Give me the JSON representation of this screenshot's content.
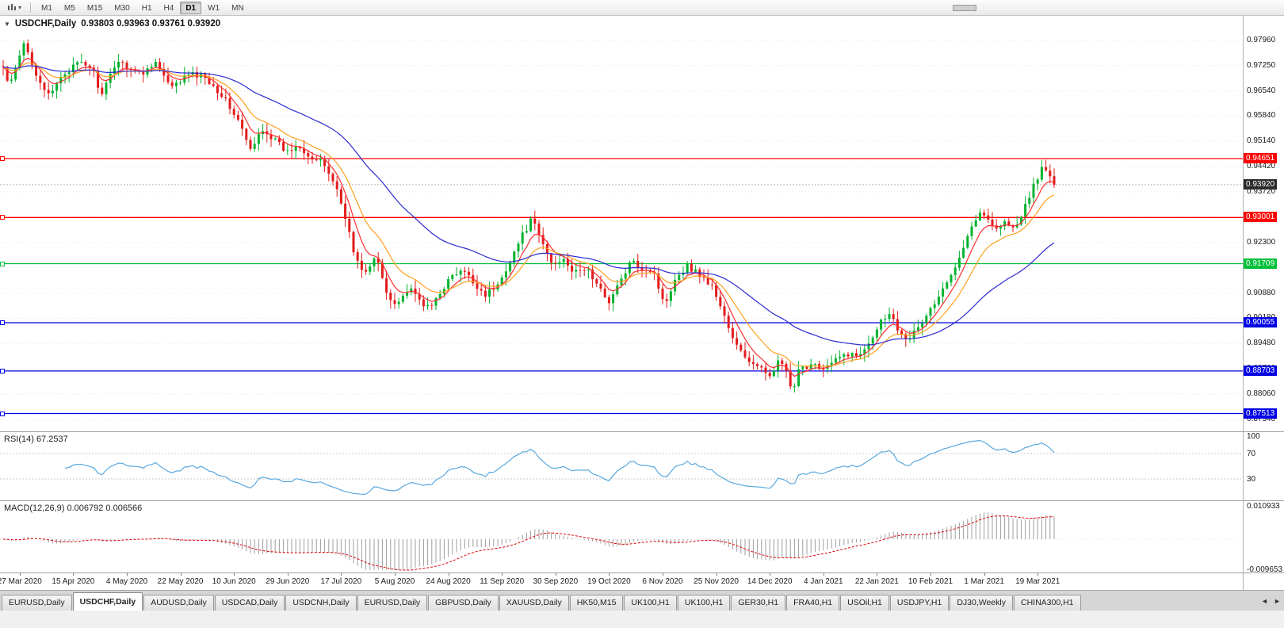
{
  "toolbar": {
    "timeframes": [
      "M1",
      "M5",
      "M15",
      "M30",
      "H1",
      "H4",
      "D1",
      "W1",
      "MN"
    ],
    "active_timeframe": "D1"
  },
  "icons": {
    "chart_type_dropdown": "▾",
    "chart_menu": "▼",
    "tab_scroll_left": "◄",
    "tab_scroll_right": "►"
  },
  "chart": {
    "type": "candlestick",
    "symbol_title": "USDCHF,Daily",
    "ohlc_text": "0.93803 0.93963 0.93761 0.93920",
    "open": "0.93803",
    "high": "0.93963",
    "low": "0.93761",
    "close": "0.93920",
    "current_price": "0.93920",
    "levels": [
      {
        "price": 0.94651,
        "label": "0.94651",
        "color": "red"
      },
      {
        "price": 0.93001,
        "label": "0.93001",
        "color": "red"
      },
      {
        "price": 0.91709,
        "label": "0.91709",
        "color": "green"
      },
      {
        "price": 0.90055,
        "label": "0.90055",
        "color": "blue"
      },
      {
        "price": 0.88703,
        "label": "0.88703",
        "color": "blue"
      },
      {
        "price": 0.87513,
        "label": "0.87513",
        "color": "blue"
      }
    ],
    "y_axis_labels": [
      "0.97960",
      "0.97250",
      "0.96540",
      "0.95840",
      "0.95140",
      "0.94420",
      "0.93720",
      "0.93020",
      "0.92300",
      "0.91600",
      "0.90880",
      "0.90180",
      "0.89480",
      "0.88760",
      "0.88060",
      "0.87340"
    ],
    "x_axis_dates": [
      "27 Mar 2020",
      "15 Apr 2020",
      "4 May 2020",
      "22 May 2020",
      "10 Jun 2020",
      "29 Jun 2020",
      "17 Jul 2020",
      "5 Aug 2020",
      "24 Aug 2020",
      "11 Sep 2020",
      "30 Sep 2020",
      "19 Oct 2020",
      "6 Nov 2020",
      "25 Nov 2020",
      "14 Dec 2020",
      "4 Jan 2021",
      "22 Jan 2021",
      "10 Feb 2021",
      "1 Mar 2021",
      "19 Mar 2021"
    ],
    "price_path": [
      [
        0.0,
        0.972
      ],
      [
        0.006,
        0.9663
      ],
      [
        0.02,
        0.9788
      ],
      [
        0.032,
        0.97
      ],
      [
        0.044,
        0.9635
      ],
      [
        0.056,
        0.97
      ],
      [
        0.072,
        0.9732
      ],
      [
        0.084,
        0.9722
      ],
      [
        0.094,
        0.964
      ],
      [
        0.108,
        0.9742
      ],
      [
        0.12,
        0.972
      ],
      [
        0.132,
        0.97
      ],
      [
        0.144,
        0.974
      ],
      [
        0.16,
        0.966
      ],
      [
        0.176,
        0.9702
      ],
      [
        0.192,
        0.9695
      ],
      [
        0.209,
        0.964
      ],
      [
        0.224,
        0.957
      ],
      [
        0.236,
        0.9482
      ],
      [
        0.246,
        0.9552
      ],
      [
        0.257,
        0.952
      ],
      [
        0.27,
        0.9482
      ],
      [
        0.281,
        0.9505
      ],
      [
        0.294,
        0.9465
      ],
      [
        0.305,
        0.945
      ],
      [
        0.316,
        0.9392
      ],
      [
        0.326,
        0.93
      ],
      [
        0.335,
        0.9182
      ],
      [
        0.345,
        0.9145
      ],
      [
        0.355,
        0.919
      ],
      [
        0.366,
        0.9078
      ],
      [
        0.375,
        0.9062
      ],
      [
        0.386,
        0.91
      ],
      [
        0.395,
        0.9072
      ],
      [
        0.406,
        0.9042
      ],
      [
        0.415,
        0.909
      ],
      [
        0.427,
        0.9135
      ],
      [
        0.438,
        0.915
      ],
      [
        0.449,
        0.9112
      ],
      [
        0.459,
        0.9085
      ],
      [
        0.471,
        0.911
      ],
      [
        0.483,
        0.9185
      ],
      [
        0.494,
        0.925
      ],
      [
        0.503,
        0.9295
      ],
      [
        0.513,
        0.9228
      ],
      [
        0.523,
        0.9165
      ],
      [
        0.534,
        0.919
      ],
      [
        0.543,
        0.9142
      ],
      [
        0.555,
        0.916
      ],
      [
        0.567,
        0.91
      ],
      [
        0.577,
        0.9066
      ],
      [
        0.587,
        0.912
      ],
      [
        0.597,
        0.9175
      ],
      [
        0.609,
        0.916
      ],
      [
        0.619,
        0.915
      ],
      [
        0.629,
        0.9052
      ],
      [
        0.639,
        0.913
      ],
      [
        0.651,
        0.9165
      ],
      [
        0.663,
        0.914
      ],
      [
        0.675,
        0.9105
      ],
      [
        0.685,
        0.9035
      ],
      [
        0.695,
        0.8952
      ],
      [
        0.707,
        0.8906
      ],
      [
        0.717,
        0.888
      ],
      [
        0.729,
        0.8862
      ],
      [
        0.739,
        0.89
      ],
      [
        0.747,
        0.886
      ],
      [
        0.751,
        0.8782
      ],
      [
        0.755,
        0.8866
      ],
      [
        0.771,
        0.8895
      ],
      [
        0.781,
        0.8876
      ],
      [
        0.792,
        0.89
      ],
      [
        0.803,
        0.892
      ],
      [
        0.813,
        0.891
      ],
      [
        0.824,
        0.8955
      ],
      [
        0.835,
        0.901
      ],
      [
        0.843,
        0.9036
      ],
      [
        0.851,
        0.899
      ],
      [
        0.861,
        0.8962
      ],
      [
        0.871,
        0.899
      ],
      [
        0.879,
        0.903
      ],
      [
        0.888,
        0.9066
      ],
      [
        0.899,
        0.912
      ],
      [
        0.909,
        0.919
      ],
      [
        0.919,
        0.926
      ],
      [
        0.928,
        0.9312
      ],
      [
        0.938,
        0.9295
      ],
      [
        0.946,
        0.927
      ],
      [
        0.955,
        0.929
      ],
      [
        0.963,
        0.9262
      ],
      [
        0.971,
        0.932
      ],
      [
        0.981,
        0.9396
      ],
      [
        0.99,
        0.9442
      ],
      [
        1.0,
        0.9392
      ]
    ]
  },
  "rsi": {
    "label": "RSI(14) 67.2537",
    "axis_labels": [
      {
        "text": "100",
        "value": 100
      },
      {
        "text": "70",
        "value": 70
      },
      {
        "text": "30",
        "value": 30
      }
    ]
  },
  "macd": {
    "label": "MACD(12,26,9) 0.006792 0.006566",
    "axis_labels": [
      {
        "text": "0.010933",
        "value": 0.010933
      },
      {
        "text": "-0.009653",
        "value": -0.009653
      }
    ]
  },
  "tabs": {
    "items": [
      "EURUSD,Daily",
      "USDCHF,Daily",
      "AUDUSD,Daily",
      "USDCAD,Daily",
      "USDCNH,Daily",
      "EURUSD,Daily",
      "GBPUSD,Daily",
      "XAUUSD,Daily",
      "HK50,M15",
      "UK100,H1",
      "UK100,H1",
      "GER30,H1",
      "FRA40,H1",
      "USOil,H1",
      "USDJPY,H1",
      "DJ30,Weekly",
      "CHINA300,H1"
    ],
    "active_index": 1
  },
  "colors": {
    "bull": "#00B22D",
    "bear": "#E31B1B",
    "ma_fast": "#FF2E2E",
    "ma_mid": "#FFA01E",
    "ma_slow": "#2A2AD0",
    "level_red": "#FF0000",
    "level_green": "#00C03A",
    "level_blue": "#0101E6",
    "grid": "#E4E4E4",
    "bid_line": "#B8B8B8",
    "bid_label_bg": "#2B2B2B",
    "rsi_line": "#58A8DE",
    "rsi_level": "#C8C8C8",
    "macd_hist": "#9D9D9D",
    "macd_signal": "#DF0000"
  }
}
